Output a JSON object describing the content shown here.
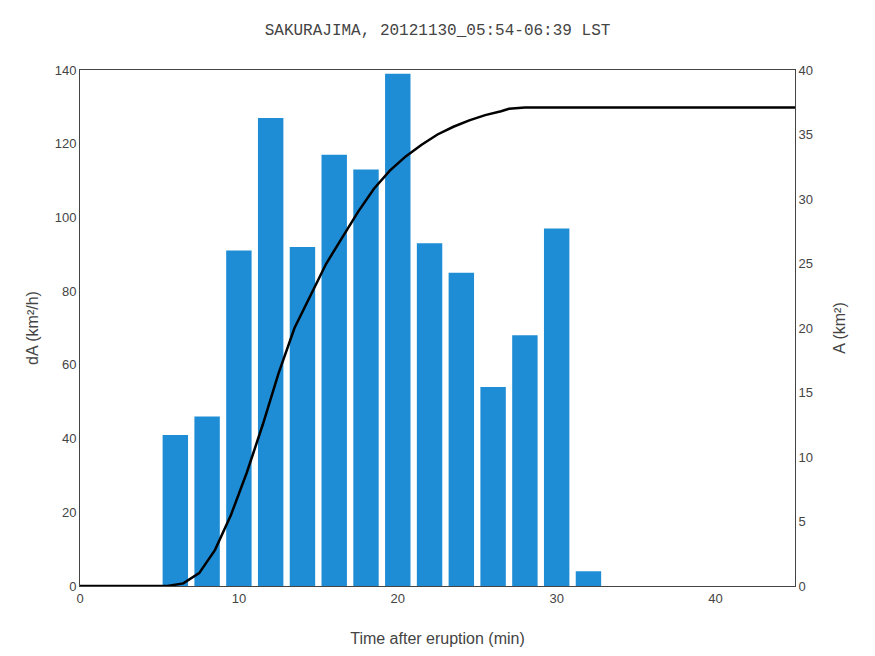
{
  "chart_data": {
    "type": "bar",
    "title": "SAKURAJIMA, 20121130_05:54-06:39 LST",
    "xlabel": "Time after eruption (min)",
    "ylabel": "dA (km²/h)",
    "y2label": "A (km²)",
    "xlim": [
      0,
      45
    ],
    "xticks": [
      0,
      10,
      20,
      30,
      40
    ],
    "ylim": [
      0,
      140
    ],
    "yticks": [
      0,
      20,
      40,
      60,
      80,
      100,
      120,
      140
    ],
    "y2lim": [
      0,
      40
    ],
    "y2ticks": [
      0,
      5,
      10,
      15,
      20,
      25,
      30,
      35,
      40
    ],
    "grid": false,
    "series": [
      {
        "type": "bar",
        "color": "#1f8dd6",
        "x": [
          6,
          8,
          10,
          12,
          14,
          16,
          18,
          20,
          22,
          24,
          26,
          28,
          30,
          32
        ],
        "values": [
          41,
          46,
          91,
          127,
          92,
          117,
          113,
          139,
          93,
          85,
          54,
          68,
          97,
          4
        ]
      },
      {
        "type": "line",
        "color": "black",
        "axis": "y2",
        "x": [
          0,
          5.5,
          6.5,
          7.5,
          8.5,
          9.5,
          10.5,
          11.5,
          12.5,
          13.5,
          14.5,
          15.5,
          16.5,
          17.5,
          18.5,
          19.5,
          20.5,
          21.5,
          22.5,
          23.5,
          24.5,
          25.5,
          26.5,
          27.0,
          28.0,
          29.0,
          30.0,
          35.0,
          45.0
        ],
        "values": [
          0,
          0,
          0.2,
          1.0,
          2.8,
          5.5,
          8.8,
          12.5,
          16.5,
          20.0,
          22.5,
          25.0,
          27.0,
          29.0,
          30.8,
          32.2,
          33.3,
          34.2,
          35.0,
          35.6,
          36.1,
          36.5,
          36.8,
          37.0,
          37.1,
          37.1,
          37.1,
          37.1,
          37.1
        ]
      }
    ]
  }
}
